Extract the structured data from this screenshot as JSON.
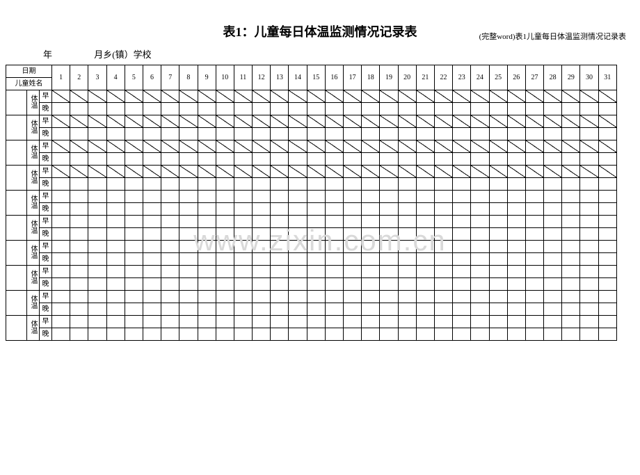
{
  "header_note": "(完整word)表1儿童每日体温监测情况记录表",
  "title": "表1：儿童每日体温监测情况记录表",
  "subheader": {
    "year": "年",
    "month_school": "月乡(镇）学校"
  },
  "labels": {
    "date": "日期",
    "child_name": "儿童姓名",
    "body_temp": "体温",
    "morning": "早",
    "evening": "晚"
  },
  "days": [
    "1",
    "2",
    "3",
    "4",
    "5",
    "6",
    "7",
    "8",
    "9",
    "10",
    "11",
    "12",
    "13",
    "14",
    "15",
    "16",
    "17",
    "18",
    "19",
    "20",
    "21",
    "22",
    "23",
    "24",
    "25",
    "26",
    "27",
    "28",
    "29",
    "30",
    "31"
  ],
  "diag_rows_count": 4,
  "blank_rows_count": 6,
  "watermark": "www.zixin.com.cn",
  "colors": {
    "border": "#000000",
    "background": "#ffffff",
    "text": "#000000",
    "watermark": "#d9d9d9"
  }
}
